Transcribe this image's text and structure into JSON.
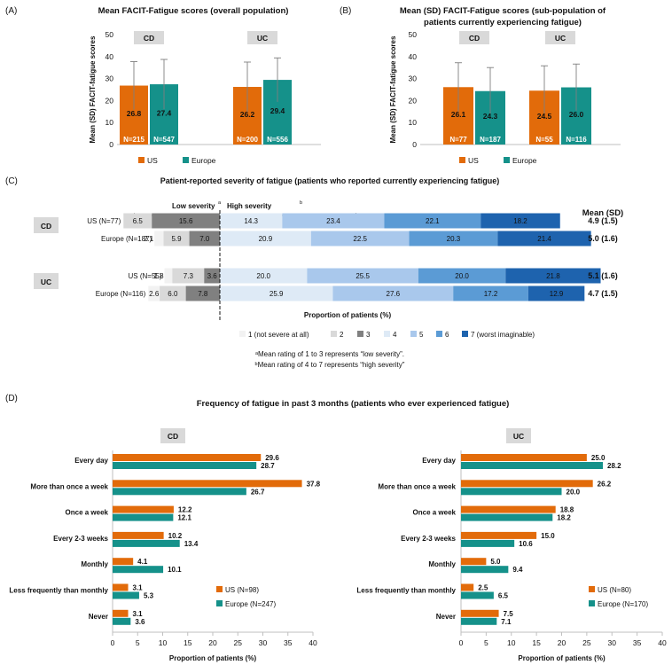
{
  "colors": {
    "us": "#E26B0A",
    "europe": "#15918A",
    "box_fill": "#D9D9D9",
    "sev": [
      "#F2F2F2",
      "#D9D9D9",
      "#808080",
      "#DEEAF6",
      "#A9C8EC",
      "#5B9BD5",
      "#1E63AE"
    ]
  },
  "chart_data": [
    {
      "id": "A",
      "type": "bar",
      "panel_label": "(A)",
      "title_lines": [
        "Mean FACIT-Fatigue scores (overall population)"
      ],
      "ylabel": "Mean (SD) FACIT-fatigue scores",
      "ylim": [
        0,
        50
      ],
      "yticks": [
        0,
        10,
        20,
        30,
        40,
        50
      ],
      "groups": [
        "CD",
        "UC"
      ],
      "series": [
        {
          "name": "US",
          "values": [
            26.8,
            26.2
          ],
          "sd": [
            10.9,
            11.3
          ],
          "n": [
            "N=215",
            "N=200"
          ]
        },
        {
          "name": "Europe",
          "values": [
            27.4,
            29.4
          ],
          "sd": [
            11.3,
            10.0
          ],
          "n": [
            "N=547",
            "N=556"
          ]
        }
      ],
      "legend": [
        "US",
        "Europe"
      ]
    },
    {
      "id": "B",
      "type": "bar",
      "panel_label": "(B)",
      "title_lines": [
        "Mean (SD) FACIT-Fatigue scores (sub-population of",
        "patients currently experiencing fatigue)"
      ],
      "ylabel": "Mean (SD) FACIT-fatigue scores",
      "ylim": [
        0,
        50
      ],
      "yticks": [
        0,
        10,
        20,
        30,
        40,
        50
      ],
      "groups": [
        "CD",
        "UC"
      ],
      "series": [
        {
          "name": "US",
          "values": [
            26.1,
            24.5
          ],
          "sd": [
            11.1,
            11.3
          ],
          "n": [
            "N=77",
            "N=55"
          ]
        },
        {
          "name": "Europe",
          "values": [
            24.3,
            26.0
          ],
          "sd": [
            10.7,
            10.6
          ],
          "n": [
            "N=187",
            "N=116"
          ]
        }
      ],
      "legend": [
        "US",
        "Europe"
      ]
    },
    {
      "id": "C",
      "type": "bar",
      "orientation": "horizontal-stacked",
      "panel_label": "(C)",
      "title": "Patient-reported severity of fatigue (patients who reported currently experiencing fatigue)",
      "xlabel": "Proportion of patients (%)",
      "low_label": "Low severity",
      "high_label": "High severity",
      "sup": "a",
      "sup_b": "b",
      "mean_header": "Mean (SD)",
      "groups": [
        {
          "name": "CD",
          "rows": [
            {
              "label": "US (N=77)",
              "values": [
                0,
                6.5,
                15.6,
                14.3,
                23.4,
                22.1,
                18.2
              ],
              "mean": "4.9 (1.5)"
            },
            {
              "label": "Europe (N=187)",
              "values": [
                2.1,
                5.9,
                7.0,
                20.9,
                22.5,
                20.3,
                21.4
              ],
              "mean": "5.0 (1.6)"
            }
          ]
        },
        {
          "name": "UC",
          "rows": [
            {
              "label": "US (N=55)",
              "values": [
                1.8,
                7.3,
                3.6,
                20.0,
                25.5,
                20.0,
                21.8
              ],
              "mean": "5.1 (1.6)"
            },
            {
              "label": "Europe (N=116)",
              "values": [
                2.6,
                6.0,
                7.8,
                25.9,
                27.6,
                17.2,
                12.9
              ],
              "mean": "4.7 (1.5)"
            }
          ]
        }
      ],
      "legend": [
        "1 (not severe at all)",
        "2",
        "3",
        "4",
        "5",
        "6",
        "7 (worst imaginable)"
      ],
      "footnotes": [
        "Mean rating of 1 to 3 represents “low severity”.",
        "Mean rating of 4 to 7 represents “high severity”"
      ]
    },
    {
      "id": "D",
      "type": "bar",
      "orientation": "horizontal",
      "panel_label": "(D)",
      "title": "Frequency of fatigue in past 3 months (patients who ever experienced fatigue)",
      "categories": [
        "Every day",
        "More than once a week",
        "Once a week",
        "Every 2-3 weeks",
        "Monthly",
        "Less frequently than monthly",
        "Never"
      ],
      "xlabel": "Proportion of patients (%)",
      "xlim": [
        0,
        40
      ],
      "xticks": [
        0,
        5,
        10,
        15,
        20,
        25,
        30,
        35,
        40
      ],
      "panels": [
        {
          "name": "CD",
          "series": [
            {
              "name": "US (N=98)",
              "values": [
                29.6,
                37.8,
                12.2,
                10.2,
                4.1,
                3.1,
                3.1
              ]
            },
            {
              "name": "Europe (N=247)",
              "values": [
                28.7,
                26.7,
                12.1,
                13.4,
                10.1,
                5.3,
                3.6
              ]
            }
          ]
        },
        {
          "name": "UC",
          "series": [
            {
              "name": "US (N=80)",
              "values": [
                25.0,
                26.2,
                18.8,
                15.0,
                5.0,
                2.5,
                7.5
              ]
            },
            {
              "name": "Europe (N=170)",
              "values": [
                28.2,
                20.0,
                18.2,
                10.6,
                9.4,
                6.5,
                7.1
              ]
            }
          ]
        }
      ]
    }
  ]
}
